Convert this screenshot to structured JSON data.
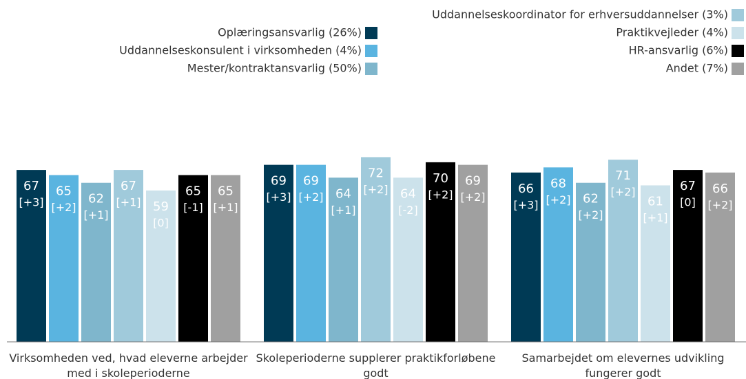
{
  "chart_data": {
    "type": "bar",
    "categories": [
      "Virksomheden ved, hvad eleverne arbejder med i skoleperioderne",
      "Skoleperioderne supplerer praktikforløbene godt",
      "Samarbejdet om elevernes udvikling fungerer godt"
    ],
    "ylim": [
      0,
      100
    ],
    "series": [
      {
        "name": "Oplæringsansvarlig (26%)",
        "color": "#003a55",
        "values": [
          67,
          69,
          66
        ],
        "changes": [
          "[+3]",
          "[+3]",
          "[+3]"
        ]
      },
      {
        "name": "Uddannelseskonsulent i virksomheden (4%)",
        "color": "#5ab4e0",
        "values": [
          65,
          69,
          68
        ],
        "changes": [
          "[+2]",
          "[+2]",
          "[+2]"
        ]
      },
      {
        "name": "Mester/kontraktansvarlig (50%)",
        "color": "#7fb6cc",
        "values": [
          62,
          64,
          62
        ],
        "changes": [
          "[+1]",
          "[+1]",
          "[+2]"
        ]
      },
      {
        "name": "Uddannelseskoordinator for erhversuddannelser (3%)",
        "color": "#a0cadb",
        "values": [
          67,
          72,
          71
        ],
        "changes": [
          "[+1]",
          "[+2]",
          "[+2]"
        ]
      },
      {
        "name": "Praktikvejleder (4%)",
        "color": "#cce2eb",
        "values": [
          59,
          64,
          61
        ],
        "changes": [
          "[0]",
          "[-2]",
          "[+1]"
        ]
      },
      {
        "name": "HR-ansvarlig (6%)",
        "color": "#000000",
        "values": [
          65,
          70,
          67
        ],
        "changes": [
          "[-1]",
          "[+2]",
          "[0]"
        ]
      },
      {
        "name": "Andet (7%)",
        "color": "#a0a0a0",
        "values": [
          65,
          69,
          66
        ],
        "changes": [
          "[+1]",
          "[+2]",
          "[+2]"
        ]
      }
    ]
  }
}
